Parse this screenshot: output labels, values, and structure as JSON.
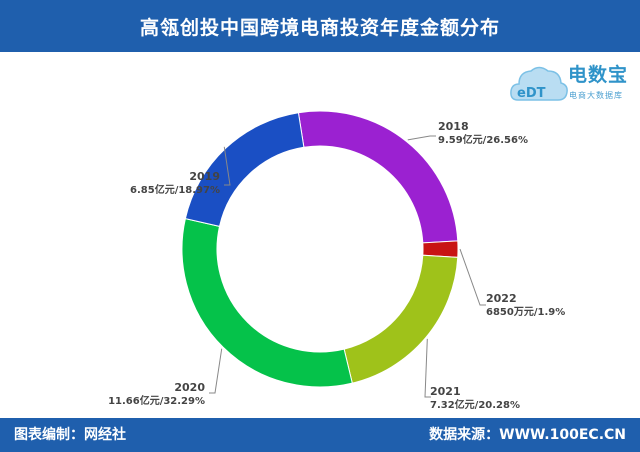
{
  "header": {
    "title": "高瓴创投中国跨境电商投资年度金额分布"
  },
  "logo": {
    "name": "电数宝",
    "sub": "电商大数据库",
    "mark": "eDT"
  },
  "footer": {
    "left": "图表编制：网经社",
    "right": "数据来源：WWW.100EC.CN"
  },
  "colors": {
    "2018": "#9b21d1",
    "2022": "#c81414",
    "2021": "#9fc21a",
    "2020": "#05c24a",
    "2019": "#1a4fc4",
    "leader": "#888888"
  },
  "chart_data": {
    "type": "pie",
    "style": "donut",
    "title": "高瓴创投中国跨境电商投资年度金额分布",
    "series": [
      {
        "labels": [
          "2018",
          "2022",
          "2021",
          "2020",
          "2019"
        ],
        "values": [
          26.56,
          1.9,
          20.28,
          32.29,
          18.97
        ],
        "display": [
          "9.59亿元/26.56%",
          "6850万元/1.9%",
          "7.32亿元/20.28%",
          "11.66亿元/32.29%",
          "6.85亿元/18.97%"
        ]
      }
    ]
  }
}
